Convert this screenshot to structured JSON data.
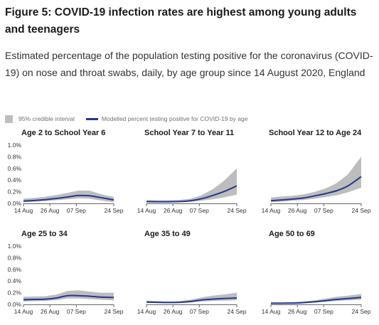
{
  "figure": {
    "title": "Figure 5: COVID-19 infection rates are highest among young adults and teenagers",
    "subtitle": "Estimated percentage of the population testing positive for the coronavirus (COVID-19) on nose and throat swabs, daily, by age group since 14 August 2020, England"
  },
  "legend": {
    "interval_label": "95% credible interval",
    "line_label": "Modelled percent testing positive for COVID-19 by age"
  },
  "colors": {
    "band": "#bdbdbd",
    "line": "#22398e",
    "axis": "#666666"
  },
  "chart_data": {
    "type": "area",
    "x_labels": [
      "14 Aug",
      "26 Aug",
      "07 Sep",
      "24 Sep"
    ],
    "x_label_days": [
      0,
      12,
      24,
      41
    ],
    "x_range": [
      0,
      41
    ],
    "ylim": [
      0,
      1.0
    ],
    "y_ticks": [
      "1.0%",
      "0.8%",
      "0.6%",
      "0.4%",
      "0.2%",
      "0.0%"
    ],
    "y_tick_values": [
      1.0,
      0.8,
      0.6,
      0.4,
      0.2,
      0.0
    ],
    "grid": false,
    "x": [
      0,
      5,
      10,
      15,
      20,
      25,
      30,
      35,
      41
    ],
    "panels": [
      {
        "name": "Age 2 to School Year 6",
        "values": [
          0.04,
          0.05,
          0.065,
          0.085,
          0.11,
          0.135,
          0.13,
          0.1,
          0.06
        ],
        "lower": [
          0.02,
          0.03,
          0.04,
          0.055,
          0.07,
          0.085,
          0.08,
          0.05,
          0.02
        ],
        "upper": [
          0.08,
          0.095,
          0.115,
          0.145,
          0.18,
          0.22,
          0.22,
          0.16,
          0.11
        ]
      },
      {
        "name": "School Year 7 to Year 11",
        "values": [
          0.03,
          0.028,
          0.028,
          0.032,
          0.045,
          0.08,
          0.135,
          0.2,
          0.3
        ],
        "lower": [
          0.015,
          0.015,
          0.016,
          0.02,
          0.028,
          0.045,
          0.07,
          0.1,
          0.15
        ],
        "upper": [
          0.06,
          0.055,
          0.055,
          0.06,
          0.08,
          0.14,
          0.24,
          0.38,
          0.6
        ]
      },
      {
        "name": "School Year 12 to Age 24",
        "values": [
          0.045,
          0.06,
          0.075,
          0.095,
          0.13,
          0.17,
          0.22,
          0.3,
          0.46
        ],
        "lower": [
          0.02,
          0.03,
          0.045,
          0.06,
          0.08,
          0.11,
          0.14,
          0.19,
          0.27
        ],
        "upper": [
          0.1,
          0.12,
          0.13,
          0.155,
          0.2,
          0.26,
          0.35,
          0.5,
          0.8
        ]
      },
      {
        "name": "Age 25 to 34",
        "values": [
          0.08,
          0.085,
          0.09,
          0.11,
          0.15,
          0.15,
          0.14,
          0.125,
          0.12
        ],
        "lower": [
          0.05,
          0.055,
          0.06,
          0.075,
          0.1,
          0.1,
          0.09,
          0.08,
          0.07
        ],
        "upper": [
          0.13,
          0.135,
          0.14,
          0.17,
          0.23,
          0.24,
          0.22,
          0.2,
          0.2
        ]
      },
      {
        "name": "Age 35 to 49",
        "values": [
          0.04,
          0.035,
          0.032,
          0.035,
          0.05,
          0.075,
          0.09,
          0.1,
          0.11
        ],
        "lower": [
          0.025,
          0.022,
          0.02,
          0.022,
          0.032,
          0.05,
          0.06,
          0.065,
          0.07
        ],
        "upper": [
          0.065,
          0.055,
          0.05,
          0.055,
          0.08,
          0.12,
          0.15,
          0.17,
          0.2
        ]
      },
      {
        "name": "Age 50 to 69",
        "values": [
          0.02,
          0.02,
          0.022,
          0.03,
          0.045,
          0.065,
          0.085,
          0.1,
          0.12
        ],
        "lower": [
          0.01,
          0.012,
          0.013,
          0.018,
          0.03,
          0.045,
          0.06,
          0.07,
          0.08
        ],
        "upper": [
          0.035,
          0.035,
          0.04,
          0.05,
          0.07,
          0.1,
          0.13,
          0.15,
          0.18
        ]
      }
    ]
  }
}
